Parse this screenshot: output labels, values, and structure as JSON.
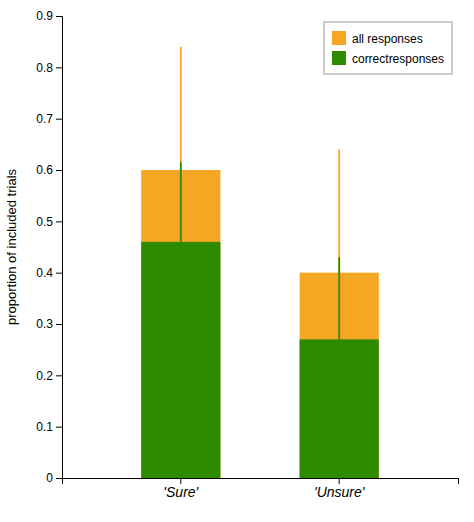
{
  "chart_data": {
    "type": "bar",
    "categories": [
      "'Sure'",
      "'Unsure'"
    ],
    "ylabel": "proportion of included trials",
    "ylim": [
      0,
      0.9
    ],
    "yticks": [
      0,
      0.1,
      0.2,
      0.3,
      0.4,
      0.5,
      0.6,
      0.7,
      0.8,
      0.9
    ],
    "grid": false,
    "legend": "upper right",
    "series": [
      {
        "name": "all responses",
        "color": "#F5A623",
        "values": [
          0.6,
          0.4
        ],
        "errors": [
          0.24,
          0.24
        ]
      },
      {
        "name": "correctresponses",
        "color": "#2E8B00",
        "values": [
          0.46,
          0.27
        ],
        "errors": [
          0.155,
          0.16
        ]
      }
    ]
  }
}
